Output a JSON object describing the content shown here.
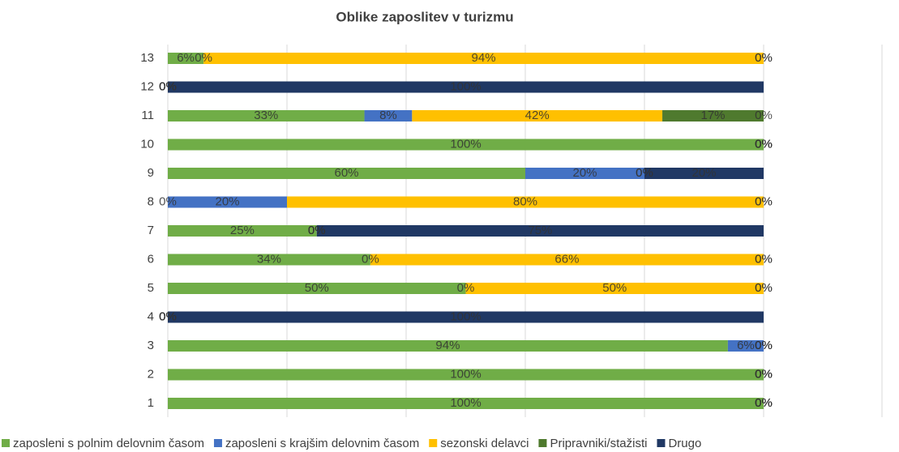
{
  "chart_data": {
    "type": "stacked-bar-horizontal",
    "title": "Oblike zaposlitev v turizmu",
    "categories": [
      "1",
      "2",
      "3",
      "4",
      "5",
      "6",
      "7",
      "8",
      "9",
      "10",
      "11",
      "12",
      "13"
    ],
    "xlim": [
      0,
      100
    ],
    "xticks": [
      0,
      20,
      40,
      60,
      80,
      100
    ],
    "grid": true,
    "legend": "bottom",
    "series": [
      {
        "name": "zaposleni s polnim delovnim časom",
        "color": "#70ad47",
        "values": [
          100,
          100,
          94,
          0,
          50,
          34,
          25,
          0,
          60,
          100,
          33,
          0,
          6
        ],
        "value_labels": [
          "100%",
          "100%",
          "94%",
          "0%",
          "50%",
          "34%",
          "25%",
          "0%",
          "60%",
          "100%",
          "33%",
          "0%",
          "6%"
        ]
      },
      {
        "name": "zaposleni s krajšim delovnim časom",
        "color": "#4472c4",
        "values": [
          0,
          0,
          6,
          0,
          0,
          0,
          0,
          20,
          20,
          0,
          8,
          0,
          0
        ],
        "value_labels": [
          "0%",
          "0%",
          "6%",
          "0%",
          "0%",
          "0%",
          "0%",
          "20%",
          "20%",
          "0%",
          "8%",
          "0%",
          "0%"
        ]
      },
      {
        "name": "sezonski delavci",
        "color": "#ffc000",
        "values": [
          0,
          0,
          0,
          0,
          50,
          66,
          0,
          80,
          0,
          0,
          42,
          0,
          94
        ],
        "value_labels": [
          "0%",
          "0%",
          "0%",
          "0%",
          "50%",
          "66%",
          "0%",
          "80%",
          "0%",
          "0%",
          "42%",
          "0%",
          "94%"
        ]
      },
      {
        "name": "Pripravniki/stažisti",
        "color": "#4f7a2e",
        "values": [
          0,
          0,
          0,
          0,
          0,
          0,
          0,
          0,
          0,
          0,
          17,
          0,
          0
        ],
        "value_labels": [
          "0%",
          "0%",
          "0%",
          "0%",
          "0%",
          "0%",
          "0%",
          "0%",
          "0%",
          "0%",
          "17%",
          "0%",
          "0%"
        ]
      },
      {
        "name": "Drugo",
        "color": "#203864",
        "values": [
          0,
          0,
          0,
          100,
          0,
          0,
          75,
          0,
          20,
          0,
          0,
          100,
          0
        ],
        "value_labels": [
          "0%",
          "0%",
          "0%",
          "100%",
          "0%",
          "0%",
          "75%",
          "0%",
          "20%",
          "0%",
          "0%",
          "100%",
          "0%"
        ]
      }
    ]
  }
}
